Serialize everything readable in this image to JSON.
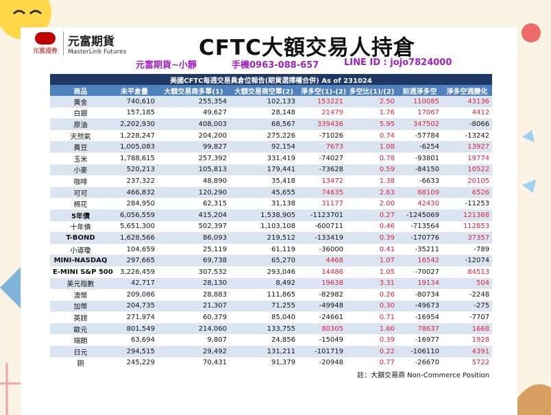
{
  "header": {
    "securities": "元富證券",
    "company": "元富期貨",
    "company_en": "MasterLink Futures",
    "title": "CFTC大額交易人持倉",
    "contact_name": "元富期貨~小靜",
    "contact_phone": "手機0963-088-657",
    "contact_line": "LINE ID : jojo7824000"
  },
  "table": {
    "caption": "美國CFTC每週交易員倉位報告(期貨選擇權合併) As of  231024",
    "columns": [
      "商品",
      "未平倉量",
      "大額交易商多單(1)",
      "大額交易商空單(2)",
      "淨多空(1)-(2)",
      "多空比(1)/(2)",
      "前週淨多空",
      "淨多空週變化"
    ],
    "rows": [
      [
        "黃金",
        "740,610",
        "255,354",
        "102,133",
        "153221",
        "2.50",
        "110085",
        "43136"
      ],
      [
        "白銀",
        "157,185",
        "49,627",
        "28,148",
        "21479",
        "1.76",
        "17067",
        "4412"
      ],
      [
        "原油",
        "2,202,930",
        "408,003",
        "68,567",
        "339436",
        "5.95",
        "347502",
        "-8066"
      ],
      [
        "天然氣",
        "1,228,247",
        "204,200",
        "275,226",
        "-71026",
        "0.74",
        "-57784",
        "-13242"
      ],
      [
        "黃豆",
        "1,005,083",
        "99,827",
        "92,154",
        "7673",
        "1.08",
        "-6254",
        "13927"
      ],
      [
        "玉米",
        "1,788,615",
        "257,392",
        "331,419",
        "-74027",
        "0.78",
        "-93801",
        "19774"
      ],
      [
        "小麥",
        "520,213",
        "105,813",
        "179,441",
        "-73628",
        "0.59",
        "-84150",
        "10522"
      ],
      [
        "咖啡",
        "237,322",
        "48,890",
        "35,418",
        "13472",
        "1.38",
        "-6633",
        "20105"
      ],
      [
        "可可",
        "466,832",
        "120,290",
        "45,655",
        "74635",
        "2.63",
        "68109",
        "6526"
      ],
      [
        "棉花",
        "284,950",
        "62,315",
        "31,138",
        "31177",
        "2.00",
        "42430",
        "-11253"
      ],
      [
        "5年債",
        "6,056,559",
        "415,204",
        "1,538,905",
        "-1123701",
        "0.27",
        "-1245069",
        "121368"
      ],
      [
        "十年債",
        "5,651,300",
        "502,397",
        "1,103,108",
        "-600711",
        "0.46",
        "-713564",
        "112853"
      ],
      [
        "T-BOND",
        "1,628,566",
        "86,093",
        "219,512",
        "-133419",
        "0.39",
        "-170776",
        "37357"
      ],
      [
        "小道瓊",
        "104,659",
        "25,119",
        "61,119",
        "-36000",
        "0.41",
        "-35211",
        "-789"
      ],
      [
        "MINI-NASDAQ",
        "297,665",
        "69,738",
        "65,270",
        "4468",
        "1.07",
        "16542",
        "-12074"
      ],
      [
        "E-MINI S&P 500",
        "3,226,459",
        "307,532",
        "293,046",
        "14486",
        "1.05",
        "-70027",
        "84513"
      ],
      [
        "美元指數",
        "42,717",
        "28,130",
        "8,492",
        "19638",
        "3.31",
        "19134",
        "504"
      ],
      [
        "澳幣",
        "209,086",
        "28,883",
        "111,865",
        "-82982",
        "0.26",
        "-80734",
        "-2248"
      ],
      [
        "加幣",
        "204,735",
        "21,307",
        "71,255",
        "-49948",
        "0.30",
        "-49673",
        "-275"
      ],
      [
        "英鎊",
        "271,974",
        "60,379",
        "85,040",
        "-24661",
        "0.71",
        "-16954",
        "-7707"
      ],
      [
        "歐元",
        "801,549",
        "214,060",
        "133,755",
        "80305",
        "1.60",
        "78637",
        "1668"
      ],
      [
        "瑞朗",
        "63,694",
        "9,807",
        "24,856",
        "-15049",
        "0.39",
        "-16977",
        "1928"
      ],
      [
        "日元",
        "294,515",
        "29,492",
        "131,211",
        "-101719",
        "0.22",
        "-106110",
        "4391"
      ],
      [
        "銅",
        "245,229",
        "70,431",
        "91,379",
        "-20948",
        "0.77",
        "-26670",
        "5722"
      ]
    ],
    "note": "註：大額交易商 Non-Commerce Position"
  }
}
